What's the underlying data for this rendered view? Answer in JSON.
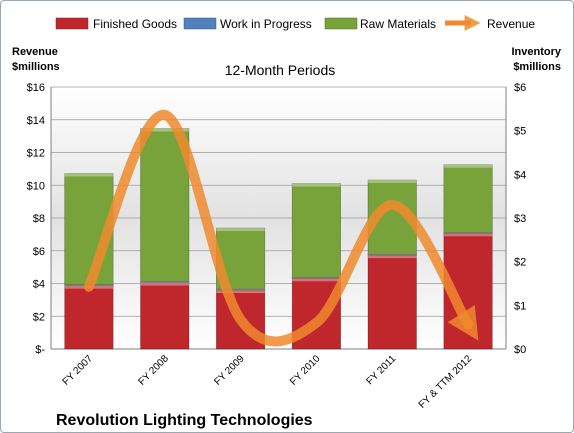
{
  "chart_data": {
    "type": "bar",
    "stacked": true,
    "title": "12-Month Periods",
    "company": "Revolution Lighting Technologies",
    "y_left_label": [
      "Revenue",
      "$millions"
    ],
    "y_right_label": [
      "Inventory",
      "$millions"
    ],
    "categories": [
      "FY 2007",
      "FY 2008",
      "FY 2009",
      "FY 2010",
      "FY 2011",
      "FY & TTM 2012"
    ],
    "y_left_ticks": [
      "$-",
      "$2",
      "$4",
      "$6",
      "$8",
      "$10",
      "$12",
      "$14",
      "$16"
    ],
    "y_right_ticks": [
      "$0",
      "$1",
      "$2",
      "$3",
      "$4",
      "$5",
      "$6"
    ],
    "ylim_left": [
      0,
      16
    ],
    "ylim_right": [
      0,
      6
    ],
    "series": [
      {
        "name": "Finished Goods",
        "axis": "right",
        "kind": "bar",
        "color": "#c0272d",
        "values": [
          1.45,
          1.52,
          1.35,
          1.62,
          2.15,
          2.65
        ]
      },
      {
        "name": "Work in Progress",
        "axis": "right",
        "kind": "bar",
        "color": "#4f81bd",
        "values": [
          0.02,
          0.03,
          0.02,
          0.02,
          0.02,
          0.02
        ]
      },
      {
        "name": "Raw Materials",
        "axis": "right",
        "kind": "bar",
        "color": "#77a33a",
        "values": [
          2.55,
          3.5,
          1.4,
          2.15,
          1.7,
          1.55
        ]
      },
      {
        "name": "Revenue",
        "axis": "left",
        "kind": "line",
        "color": "#f0892e",
        "values": [
          3.8,
          14.3,
          1.8,
          1.6,
          8.8,
          1.5
        ]
      }
    ],
    "grid": true,
    "legend_position": "top"
  }
}
